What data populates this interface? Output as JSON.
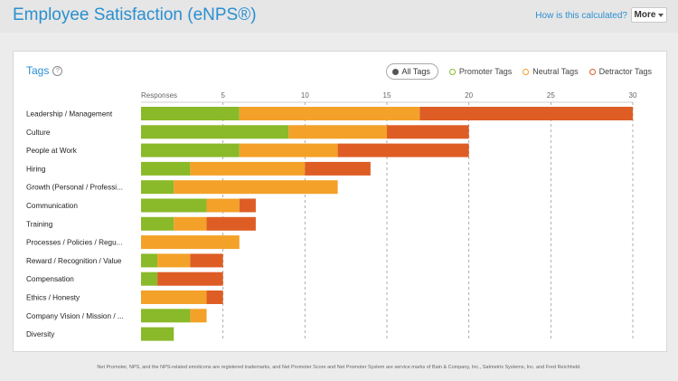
{
  "header": {
    "title": "Employee Satisfaction (eNPS®)",
    "calc_link": "How is this calculated?",
    "more_label": "More"
  },
  "card": {
    "title": "Tags",
    "help_icon": "?"
  },
  "legend": {
    "all": "All Tags",
    "promoter": "Promoter Tags",
    "neutral": "Neutral Tags",
    "detractor": "Detractor Tags"
  },
  "colors": {
    "promoter": "#8ab929",
    "neutral": "#f3a128",
    "detractor": "#de5d25"
  },
  "chart_data": {
    "type": "bar",
    "orientation": "horizontal",
    "stacked": true,
    "xlabel": "Responses",
    "xlim": [
      0,
      30
    ],
    "xticks": [
      5,
      10,
      15,
      20,
      25,
      30
    ],
    "grid": true,
    "categories": [
      "Leadership / Management",
      "Culture",
      "People at Work",
      "Hiring",
      "Growth (Personal / Professi...",
      "Communication",
      "Training",
      "Processes / Policies / Regu...",
      "Reward / Recognition / Value",
      "Compensation",
      "Ethics / Honesty",
      "Company Vision / Mission / ...",
      "Diversity"
    ],
    "series": [
      {
        "name": "Promoter Tags",
        "values": [
          6,
          9,
          6,
          3,
          2,
          4,
          2,
          0,
          1,
          1,
          0,
          3,
          2
        ]
      },
      {
        "name": "Neutral Tags",
        "values": [
          11,
          6,
          6,
          7,
          10,
          2,
          2,
          6,
          2,
          0,
          4,
          1,
          0
        ]
      },
      {
        "name": "Detractor Tags",
        "values": [
          13,
          5,
          8,
          4,
          0,
          1,
          3,
          0,
          2,
          4,
          1,
          0,
          0
        ]
      }
    ]
  },
  "footer": "Net Promoter, NPS, and the NPS-related emoticons are registered trademarks, and Net Promoter Score and Net Promoter System are service marks of Bain & Company, Inc., Satmetrix Systems, Inc. and Fred Reichheld."
}
